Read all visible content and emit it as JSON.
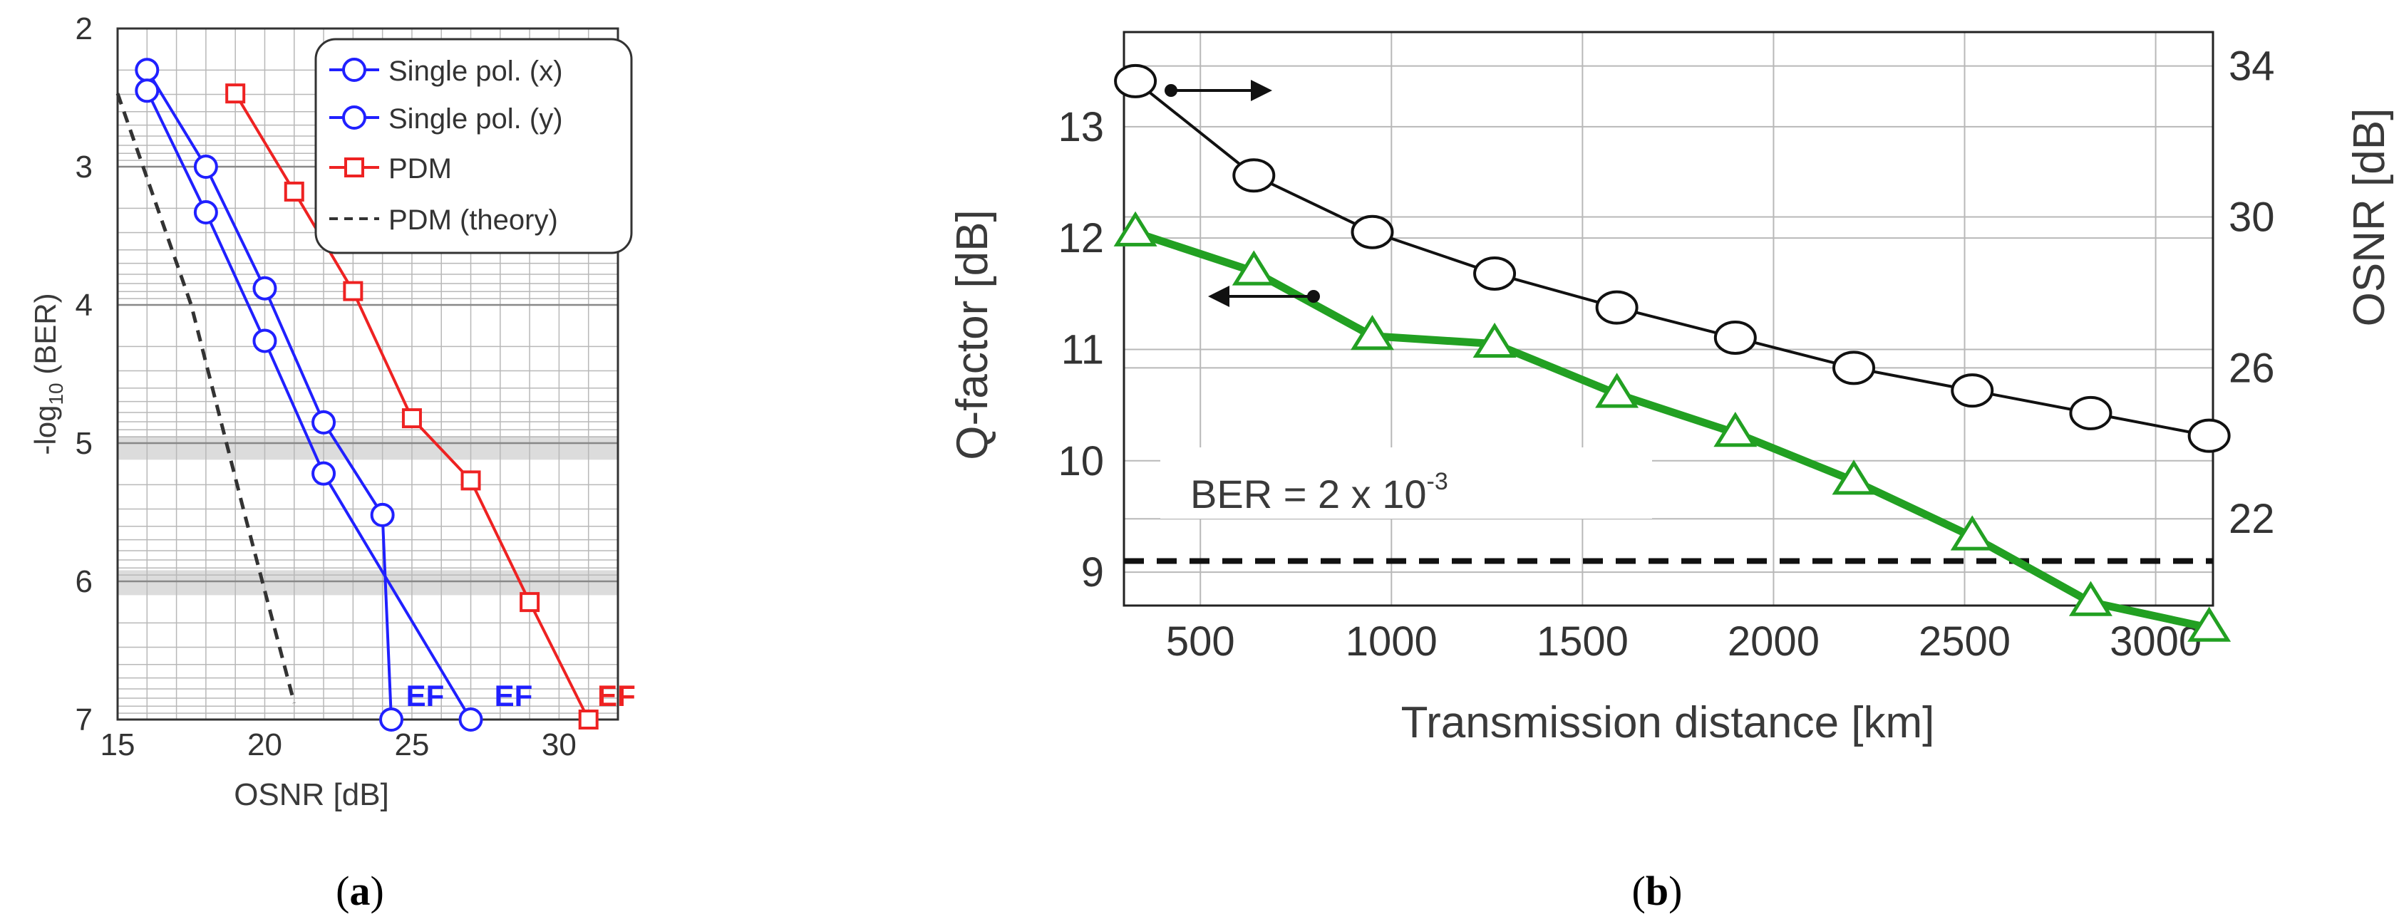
{
  "colors": {
    "single_pol": "#2020ff",
    "pdm": "#ee2222",
    "theory": "#333333",
    "q_factor": "#22a022",
    "osnr_curve": "#111111",
    "grid": "#b8b8b8",
    "shade": "#dcdcdc"
  },
  "panels": {
    "a": {
      "caption_open": "(",
      "letter": "a",
      "caption_close": ")"
    },
    "b": {
      "caption_open": "(",
      "letter": "b",
      "caption_close": ")"
    }
  },
  "chart_data": [
    {
      "id": "a",
      "type": "line",
      "xlabel": "OSNR [dB]",
      "ylabel": "-log10 (BER)",
      "xlim": [
        15,
        32
      ],
      "ylim": [
        2,
        7
      ],
      "y_inverted": true,
      "grid": true,
      "legend_position": "top-right",
      "x_ticks": [
        15,
        20,
        25,
        30
      ],
      "y_ticks": [
        2,
        3,
        4,
        5,
        6,
        7
      ],
      "series": [
        {
          "name": "Single pol. (x)",
          "marker": "circle",
          "color_key": "single_pol",
          "x": [
            16.0,
            18.0,
            20.0,
            22.0,
            24.0,
            24.3
          ],
          "y": [
            2.3,
            3.0,
            3.88,
            4.85,
            5.52,
            7.0
          ]
        },
        {
          "name": "Single pol. (y)",
          "marker": "circle",
          "color_key": "single_pol",
          "x": [
            16.0,
            18.0,
            20.0,
            22.0,
            27.0
          ],
          "y": [
            2.45,
            3.33,
            4.26,
            5.22,
            7.0
          ]
        },
        {
          "name": "PDM",
          "marker": "square",
          "color_key": "pdm",
          "x": [
            19.0,
            21.0,
            23.0,
            25.0,
            27.0,
            29.0,
            31.0
          ],
          "y": [
            2.47,
            3.18,
            3.9,
            4.82,
            5.27,
            6.15,
            7.0
          ]
        },
        {
          "name": "PDM (theory)",
          "marker": "none",
          "dashed": true,
          "color_key": "theory",
          "x": [
            15.0,
            17.5,
            19.3,
            21.0
          ],
          "y": [
            2.47,
            4.0,
            5.5,
            6.88
          ]
        }
      ],
      "annotations": [
        {
          "text": "EF",
          "x": 24.8,
          "y": 6.85,
          "color_key": "single_pol"
        },
        {
          "text": "EF",
          "x": 27.8,
          "y": 6.85,
          "color_key": "single_pol"
        },
        {
          "text": "EF",
          "x": 31.3,
          "y": 6.85,
          "color_key": "pdm"
        }
      ]
    },
    {
      "id": "b",
      "type": "line",
      "xlabel": "Transmission distance [km]",
      "ylabel": "Q-factor [dB]",
      "ylabel_right": "OSNR [dB]",
      "xlim": [
        300,
        3150
      ],
      "ylim": [
        8.7,
        13.85
      ],
      "ylim_right": [
        19.7,
        34.9
      ],
      "grid": true,
      "x_ticks": [
        500,
        1000,
        1500,
        2000,
        2500,
        3000
      ],
      "y_ticks": [
        9,
        10,
        11,
        12,
        13
      ],
      "y_ticks_right": [
        22,
        26,
        30,
        34
      ],
      "series": [
        {
          "name": "OSNR",
          "axis": "right",
          "marker": "circle",
          "color_key": "osnr_curve",
          "x": [
            330,
            640,
            950,
            1270,
            1590,
            1900,
            2210,
            2520,
            2830,
            3140
          ],
          "y": [
            33.6,
            31.1,
            29.6,
            28.5,
            27.6,
            26.8,
            26.0,
            25.4,
            24.8,
            24.2
          ]
        },
        {
          "name": "Q-factor",
          "axis": "left",
          "marker": "triangle",
          "color_key": "q_factor",
          "x": [
            330,
            640,
            950,
            1270,
            1590,
            1900,
            2210,
            2520,
            2830,
            3140
          ],
          "y": [
            12.05,
            11.7,
            11.12,
            11.05,
            10.6,
            10.25,
            9.82,
            9.32,
            8.73,
            8.5
          ]
        }
      ],
      "threshold": {
        "label": "BER = 2 x 10",
        "exponent": "-3",
        "q_value": 9.1
      }
    }
  ]
}
